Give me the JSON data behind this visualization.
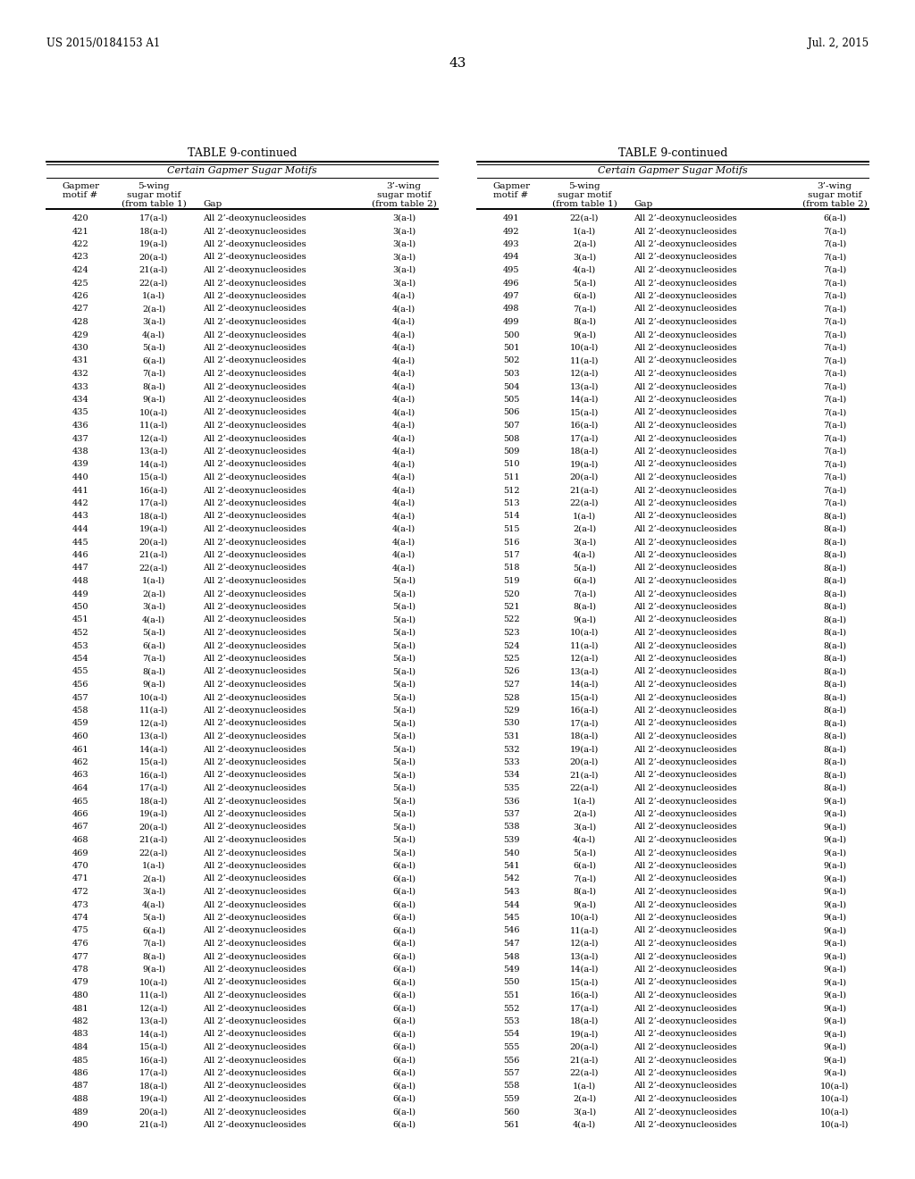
{
  "header_left": "US 2015/0184153 A1",
  "header_right": "Jul. 2, 2015",
  "page_number": "43",
  "table_title": "TABLE 9-continued",
  "table_subtitle": "Certain Gapmer Sugar Motifs",
  "left_table": [
    [
      "420",
      "17(a-l)",
      "All 2’-deoxynucleosides",
      "3(a-l)"
    ],
    [
      "421",
      "18(a-l)",
      "All 2’-deoxynucleosides",
      "3(a-l)"
    ],
    [
      "422",
      "19(a-l)",
      "All 2’-deoxynucleosides",
      "3(a-l)"
    ],
    [
      "423",
      "20(a-l)",
      "All 2’-deoxynucleosides",
      "3(a-l)"
    ],
    [
      "424",
      "21(a-l)",
      "All 2’-deoxynucleosides",
      "3(a-l)"
    ],
    [
      "425",
      "22(a-l)",
      "All 2’-deoxynucleosides",
      "3(a-l)"
    ],
    [
      "426",
      "1(a-l)",
      "All 2’-deoxynucleosides",
      "4(a-l)"
    ],
    [
      "427",
      "2(a-l)",
      "All 2’-deoxynucleosides",
      "4(a-l)"
    ],
    [
      "428",
      "3(a-l)",
      "All 2’-deoxynucleosides",
      "4(a-l)"
    ],
    [
      "429",
      "4(a-l)",
      "All 2’-deoxynucleosides",
      "4(a-l)"
    ],
    [
      "430",
      "5(a-l)",
      "All 2’-deoxynucleosides",
      "4(a-l)"
    ],
    [
      "431",
      "6(a-l)",
      "All 2’-deoxynucleosides",
      "4(a-l)"
    ],
    [
      "432",
      "7(a-l)",
      "All 2’-deoxynucleosides",
      "4(a-l)"
    ],
    [
      "433",
      "8(a-l)",
      "All 2’-deoxynucleosides",
      "4(a-l)"
    ],
    [
      "434",
      "9(a-l)",
      "All 2’-deoxynucleosides",
      "4(a-l)"
    ],
    [
      "435",
      "10(a-l)",
      "All 2’-deoxynucleosides",
      "4(a-l)"
    ],
    [
      "436",
      "11(a-l)",
      "All 2’-deoxynucleosides",
      "4(a-l)"
    ],
    [
      "437",
      "12(a-l)",
      "All 2’-deoxynucleosides",
      "4(a-l)"
    ],
    [
      "438",
      "13(a-l)",
      "All 2’-deoxynucleosides",
      "4(a-l)"
    ],
    [
      "439",
      "14(a-l)",
      "All 2’-deoxynucleosides",
      "4(a-l)"
    ],
    [
      "440",
      "15(a-l)",
      "All 2’-deoxynucleosides",
      "4(a-l)"
    ],
    [
      "441",
      "16(a-l)",
      "All 2’-deoxynucleosides",
      "4(a-l)"
    ],
    [
      "442",
      "17(a-l)",
      "All 2’-deoxynucleosides",
      "4(a-l)"
    ],
    [
      "443",
      "18(a-l)",
      "All 2’-deoxynucleosides",
      "4(a-l)"
    ],
    [
      "444",
      "19(a-l)",
      "All 2’-deoxynucleosides",
      "4(a-l)"
    ],
    [
      "445",
      "20(a-l)",
      "All 2’-deoxynucleosides",
      "4(a-l)"
    ],
    [
      "446",
      "21(a-l)",
      "All 2’-deoxynucleosides",
      "4(a-l)"
    ],
    [
      "447",
      "22(a-l)",
      "All 2’-deoxynucleosides",
      "4(a-l)"
    ],
    [
      "448",
      "1(a-l)",
      "All 2’-deoxynucleosides",
      "5(a-l)"
    ],
    [
      "449",
      "2(a-l)",
      "All 2’-deoxynucleosides",
      "5(a-l)"
    ],
    [
      "450",
      "3(a-l)",
      "All 2’-deoxynucleosides",
      "5(a-l)"
    ],
    [
      "451",
      "4(a-l)",
      "All 2’-deoxynucleosides",
      "5(a-l)"
    ],
    [
      "452",
      "5(a-l)",
      "All 2’-deoxynucleosides",
      "5(a-l)"
    ],
    [
      "453",
      "6(a-l)",
      "All 2’-deoxynucleosides",
      "5(a-l)"
    ],
    [
      "454",
      "7(a-l)",
      "All 2’-deoxynucleosides",
      "5(a-l)"
    ],
    [
      "455",
      "8(a-l)",
      "All 2’-deoxynucleosides",
      "5(a-l)"
    ],
    [
      "456",
      "9(a-l)",
      "All 2’-deoxynucleosides",
      "5(a-l)"
    ],
    [
      "457",
      "10(a-l)",
      "All 2’-deoxynucleosides",
      "5(a-l)"
    ],
    [
      "458",
      "11(a-l)",
      "All 2’-deoxynucleosides",
      "5(a-l)"
    ],
    [
      "459",
      "12(a-l)",
      "All 2’-deoxynucleosides",
      "5(a-l)"
    ],
    [
      "460",
      "13(a-l)",
      "All 2’-deoxynucleosides",
      "5(a-l)"
    ],
    [
      "461",
      "14(a-l)",
      "All 2’-deoxynucleosides",
      "5(a-l)"
    ],
    [
      "462",
      "15(a-l)",
      "All 2’-deoxynucleosides",
      "5(a-l)"
    ],
    [
      "463",
      "16(a-l)",
      "All 2’-deoxynucleosides",
      "5(a-l)"
    ],
    [
      "464",
      "17(a-l)",
      "All 2’-deoxynucleosides",
      "5(a-l)"
    ],
    [
      "465",
      "18(a-l)",
      "All 2’-deoxynucleosides",
      "5(a-l)"
    ],
    [
      "466",
      "19(a-l)",
      "All 2’-deoxynucleosides",
      "5(a-l)"
    ],
    [
      "467",
      "20(a-l)",
      "All 2’-deoxynucleosides",
      "5(a-l)"
    ],
    [
      "468",
      "21(a-l)",
      "All 2’-deoxynucleosides",
      "5(a-l)"
    ],
    [
      "469",
      "22(a-l)",
      "All 2’-deoxynucleosides",
      "5(a-l)"
    ],
    [
      "470",
      "1(a-l)",
      "All 2’-deoxynucleosides",
      "6(a-l)"
    ],
    [
      "471",
      "2(a-l)",
      "All 2’-deoxynucleosides",
      "6(a-l)"
    ],
    [
      "472",
      "3(a-l)",
      "All 2’-deoxynucleosides",
      "6(a-l)"
    ],
    [
      "473",
      "4(a-l)",
      "All 2’-deoxynucleosides",
      "6(a-l)"
    ],
    [
      "474",
      "5(a-l)",
      "All 2’-deoxynucleosides",
      "6(a-l)"
    ],
    [
      "475",
      "6(a-l)",
      "All 2’-deoxynucleosides",
      "6(a-l)"
    ],
    [
      "476",
      "7(a-l)",
      "All 2’-deoxynucleosides",
      "6(a-l)"
    ],
    [
      "477",
      "8(a-l)",
      "All 2’-deoxynucleosides",
      "6(a-l)"
    ],
    [
      "478",
      "9(a-l)",
      "All 2’-deoxynucleosides",
      "6(a-l)"
    ],
    [
      "479",
      "10(a-l)",
      "All 2’-deoxynucleosides",
      "6(a-l)"
    ],
    [
      "480",
      "11(a-l)",
      "All 2’-deoxynucleosides",
      "6(a-l)"
    ],
    [
      "481",
      "12(a-l)",
      "All 2’-deoxynucleosides",
      "6(a-l)"
    ],
    [
      "482",
      "13(a-l)",
      "All 2’-deoxynucleosides",
      "6(a-l)"
    ],
    [
      "483",
      "14(a-l)",
      "All 2’-deoxynucleosides",
      "6(a-l)"
    ],
    [
      "484",
      "15(a-l)",
      "All 2’-deoxynucleosides",
      "6(a-l)"
    ],
    [
      "485",
      "16(a-l)",
      "All 2’-deoxynucleosides",
      "6(a-l)"
    ],
    [
      "486",
      "17(a-l)",
      "All 2’-deoxynucleosides",
      "6(a-l)"
    ],
    [
      "487",
      "18(a-l)",
      "All 2’-deoxynucleosides",
      "6(a-l)"
    ],
    [
      "488",
      "19(a-l)",
      "All 2’-deoxynucleosides",
      "6(a-l)"
    ],
    [
      "489",
      "20(a-l)",
      "All 2’-deoxynucleosides",
      "6(a-l)"
    ],
    [
      "490",
      "21(a-l)",
      "All 2’-deoxynucleosides",
      "6(a-l)"
    ]
  ],
  "right_table": [
    [
      "491",
      "22(a-l)",
      "All 2’-deoxynucleosides",
      "6(a-l)"
    ],
    [
      "492",
      "1(a-l)",
      "All 2’-deoxynucleosides",
      "7(a-l)"
    ],
    [
      "493",
      "2(a-l)",
      "All 2’-deoxynucleosides",
      "7(a-l)"
    ],
    [
      "494",
      "3(a-l)",
      "All 2’-deoxynucleosides",
      "7(a-l)"
    ],
    [
      "495",
      "4(a-l)",
      "All 2’-deoxynucleosides",
      "7(a-l)"
    ],
    [
      "496",
      "5(a-l)",
      "All 2’-deoxynucleosides",
      "7(a-l)"
    ],
    [
      "497",
      "6(a-l)",
      "All 2’-deoxynucleosides",
      "7(a-l)"
    ],
    [
      "498",
      "7(a-l)",
      "All 2’-deoxynucleosides",
      "7(a-l)"
    ],
    [
      "499",
      "8(a-l)",
      "All 2’-deoxynucleosides",
      "7(a-l)"
    ],
    [
      "500",
      "9(a-l)",
      "All 2’-deoxynucleosides",
      "7(a-l)"
    ],
    [
      "501",
      "10(a-l)",
      "All 2’-deoxynucleosides",
      "7(a-l)"
    ],
    [
      "502",
      "11(a-l)",
      "All 2’-deoxynucleosides",
      "7(a-l)"
    ],
    [
      "503",
      "12(a-l)",
      "All 2’-deoxynucleosides",
      "7(a-l)"
    ],
    [
      "504",
      "13(a-l)",
      "All 2’-deoxynucleosides",
      "7(a-l)"
    ],
    [
      "505",
      "14(a-l)",
      "All 2’-deoxynucleosides",
      "7(a-l)"
    ],
    [
      "506",
      "15(a-l)",
      "All 2’-deoxynucleosides",
      "7(a-l)"
    ],
    [
      "507",
      "16(a-l)",
      "All 2’-deoxynucleosides",
      "7(a-l)"
    ],
    [
      "508",
      "17(a-l)",
      "All 2’-deoxynucleosides",
      "7(a-l)"
    ],
    [
      "509",
      "18(a-l)",
      "All 2’-deoxynucleosides",
      "7(a-l)"
    ],
    [
      "510",
      "19(a-l)",
      "All 2’-deoxynucleosides",
      "7(a-l)"
    ],
    [
      "511",
      "20(a-l)",
      "All 2’-deoxynucleosides",
      "7(a-l)"
    ],
    [
      "512",
      "21(a-l)",
      "All 2’-deoxynucleosides",
      "7(a-l)"
    ],
    [
      "513",
      "22(a-l)",
      "All 2’-deoxynucleosides",
      "7(a-l)"
    ],
    [
      "514",
      "1(a-l)",
      "All 2’-deoxynucleosides",
      "8(a-l)"
    ],
    [
      "515",
      "2(a-l)",
      "All 2’-deoxynucleosides",
      "8(a-l)"
    ],
    [
      "516",
      "3(a-l)",
      "All 2’-deoxynucleosides",
      "8(a-l)"
    ],
    [
      "517",
      "4(a-l)",
      "All 2’-deoxynucleosides",
      "8(a-l)"
    ],
    [
      "518",
      "5(a-l)",
      "All 2’-deoxynucleosides",
      "8(a-l)"
    ],
    [
      "519",
      "6(a-l)",
      "All 2’-deoxynucleosides",
      "8(a-l)"
    ],
    [
      "520",
      "7(a-l)",
      "All 2’-deoxynucleosides",
      "8(a-l)"
    ],
    [
      "521",
      "8(a-l)",
      "All 2’-deoxynucleosides",
      "8(a-l)"
    ],
    [
      "522",
      "9(a-l)",
      "All 2’-deoxynucleosides",
      "8(a-l)"
    ],
    [
      "523",
      "10(a-l)",
      "All 2’-deoxynucleosides",
      "8(a-l)"
    ],
    [
      "524",
      "11(a-l)",
      "All 2’-deoxynucleosides",
      "8(a-l)"
    ],
    [
      "525",
      "12(a-l)",
      "All 2’-deoxynucleosides",
      "8(a-l)"
    ],
    [
      "526",
      "13(a-l)",
      "All 2’-deoxynucleosides",
      "8(a-l)"
    ],
    [
      "527",
      "14(a-l)",
      "All 2’-deoxynucleosides",
      "8(a-l)"
    ],
    [
      "528",
      "15(a-l)",
      "All 2’-deoxynucleosides",
      "8(a-l)"
    ],
    [
      "529",
      "16(a-l)",
      "All 2’-deoxynucleosides",
      "8(a-l)"
    ],
    [
      "530",
      "17(a-l)",
      "All 2’-deoxynucleosides",
      "8(a-l)"
    ],
    [
      "531",
      "18(a-l)",
      "All 2’-deoxynucleosides",
      "8(a-l)"
    ],
    [
      "532",
      "19(a-l)",
      "All 2’-deoxynucleosides",
      "8(a-l)"
    ],
    [
      "533",
      "20(a-l)",
      "All 2’-deoxynucleosides",
      "8(a-l)"
    ],
    [
      "534",
      "21(a-l)",
      "All 2’-deoxynucleosides",
      "8(a-l)"
    ],
    [
      "535",
      "22(a-l)",
      "All 2’-deoxynucleosides",
      "8(a-l)"
    ],
    [
      "536",
      "1(a-l)",
      "All 2’-deoxynucleosides",
      "9(a-l)"
    ],
    [
      "537",
      "2(a-l)",
      "All 2’-deoxynucleosides",
      "9(a-l)"
    ],
    [
      "538",
      "3(a-l)",
      "All 2’-deoxynucleosides",
      "9(a-l)"
    ],
    [
      "539",
      "4(a-l)",
      "All 2’-deoxynucleosides",
      "9(a-l)"
    ],
    [
      "540",
      "5(a-l)",
      "All 2’-deoxynucleosides",
      "9(a-l)"
    ],
    [
      "541",
      "6(a-l)",
      "All 2’-deoxynucleosides",
      "9(a-l)"
    ],
    [
      "542",
      "7(a-l)",
      "All 2’-deoxynucleosides",
      "9(a-l)"
    ],
    [
      "543",
      "8(a-l)",
      "All 2’-deoxynucleosides",
      "9(a-l)"
    ],
    [
      "544",
      "9(a-l)",
      "All 2’-deoxynucleosides",
      "9(a-l)"
    ],
    [
      "545",
      "10(a-l)",
      "All 2’-deoxynucleosides",
      "9(a-l)"
    ],
    [
      "546",
      "11(a-l)",
      "All 2’-deoxynucleosides",
      "9(a-l)"
    ],
    [
      "547",
      "12(a-l)",
      "All 2’-deoxynucleosides",
      "9(a-l)"
    ],
    [
      "548",
      "13(a-l)",
      "All 2’-deoxynucleosides",
      "9(a-l)"
    ],
    [
      "549",
      "14(a-l)",
      "All 2’-deoxynucleosides",
      "9(a-l)"
    ],
    [
      "550",
      "15(a-l)",
      "All 2’-deoxynucleosides",
      "9(a-l)"
    ],
    [
      "551",
      "16(a-l)",
      "All 2’-deoxynucleosides",
      "9(a-l)"
    ],
    [
      "552",
      "17(a-l)",
      "All 2’-deoxynucleosides",
      "9(a-l)"
    ],
    [
      "553",
      "18(a-l)",
      "All 2’-deoxynucleosides",
      "9(a-l)"
    ],
    [
      "554",
      "19(a-l)",
      "All 2’-deoxynucleosides",
      "9(a-l)"
    ],
    [
      "555",
      "20(a-l)",
      "All 2’-deoxynucleosides",
      "9(a-l)"
    ],
    [
      "556",
      "21(a-l)",
      "All 2’-deoxynucleosides",
      "9(a-l)"
    ],
    [
      "557",
      "22(a-l)",
      "All 2’-deoxynucleosides",
      "9(a-l)"
    ],
    [
      "558",
      "1(a-l)",
      "All 2’-deoxynucleosides",
      "10(a-l)"
    ],
    [
      "559",
      "2(a-l)",
      "All 2’-deoxynucleosides",
      "10(a-l)"
    ],
    [
      "560",
      "3(a-l)",
      "All 2’-deoxynucleosides",
      "10(a-l)"
    ],
    [
      "561",
      "4(a-l)",
      "All 2’-deoxynucleosides",
      "10(a-l)"
    ]
  ]
}
